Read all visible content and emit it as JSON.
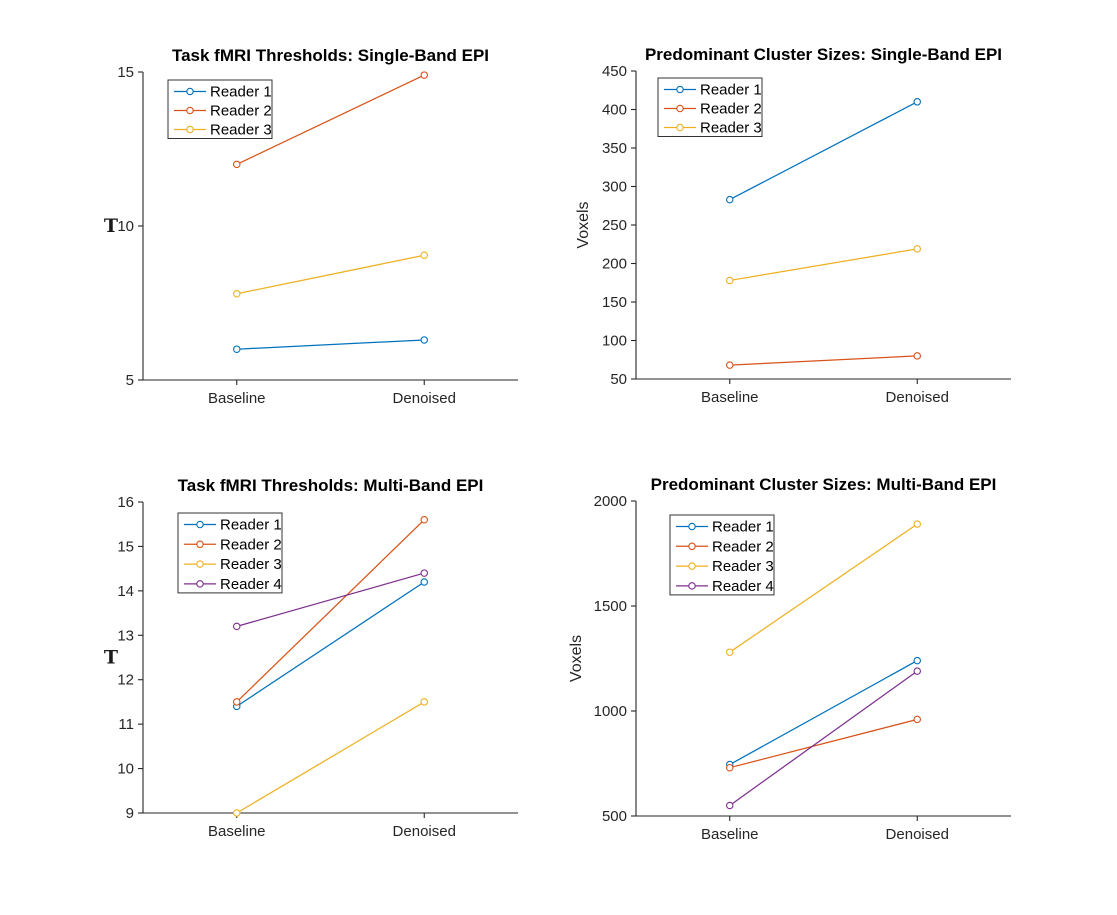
{
  "figure": {
    "background": "#ffffff",
    "axis_color": "#262626",
    "title_color": "#000000",
    "legend_border_color": "#333333"
  },
  "palette": {
    "reader1": "#0072BD",
    "reader2": "#D95319",
    "reader3": "#EDB120",
    "reader4": "#7E2F8E"
  },
  "chart_data": [
    {
      "id": "thresholds-single-band",
      "type": "line",
      "title": "Task fMRI Thresholds: Single-Band EPI",
      "xlabel": "",
      "ylabel": "T",
      "ylabel_style": "serif-bold",
      "categories": [
        "Baseline",
        "Denoised"
      ],
      "series": [
        {
          "name": "Reader 1",
          "color": "#0072BD",
          "values": [
            6.0,
            6.3
          ]
        },
        {
          "name": "Reader 2",
          "color": "#D95319",
          "values": [
            12.0,
            14.9
          ]
        },
        {
          "name": "Reader 3",
          "color": "#EDB120",
          "values": [
            7.8,
            9.05
          ]
        }
      ],
      "ylim": [
        5,
        15
      ],
      "yticks": [
        5,
        10,
        15
      ],
      "legend_position": "top-left",
      "grid": false,
      "marker": "open-circle"
    },
    {
      "id": "clusters-single-band",
      "type": "line",
      "title": "Predominant Cluster Sizes: Single-Band EPI",
      "xlabel": "",
      "ylabel": "Voxels",
      "ylabel_style": "rotated",
      "categories": [
        "Baseline",
        "Denoised"
      ],
      "series": [
        {
          "name": "Reader 1",
          "color": "#0072BD",
          "values": [
            283,
            410
          ]
        },
        {
          "name": "Reader 2",
          "color": "#D95319",
          "values": [
            68,
            80
          ]
        },
        {
          "name": "Reader 3",
          "color": "#EDB120",
          "values": [
            178,
            219
          ]
        }
      ],
      "ylim": [
        50,
        450
      ],
      "yticks": [
        50,
        100,
        150,
        200,
        250,
        300,
        350,
        400,
        450
      ],
      "legend_position": "top-left",
      "grid": false,
      "marker": "open-circle"
    },
    {
      "id": "thresholds-multi-band",
      "type": "line",
      "title": "Task fMRI Thresholds: Multi-Band EPI",
      "xlabel": "",
      "ylabel": "T",
      "ylabel_style": "serif-bold",
      "categories": [
        "Baseline",
        "Denoised"
      ],
      "series": [
        {
          "name": "Reader 1",
          "color": "#0072BD",
          "values": [
            11.4,
            14.2
          ]
        },
        {
          "name": "Reader 2",
          "color": "#D95319",
          "values": [
            11.5,
            15.6
          ]
        },
        {
          "name": "Reader 3",
          "color": "#EDB120",
          "values": [
            9.0,
            11.5
          ]
        },
        {
          "name": "Reader 4",
          "color": "#7E2F8E",
          "values": [
            13.2,
            14.4
          ]
        }
      ],
      "ylim": [
        9,
        16
      ],
      "yticks": [
        9,
        10,
        11,
        12,
        13,
        14,
        15,
        16
      ],
      "legend_position": "top-left",
      "grid": false,
      "marker": "open-circle"
    },
    {
      "id": "clusters-multi-band",
      "type": "line",
      "title": "Predominant Cluster Sizes: Multi-Band EPI",
      "xlabel": "",
      "ylabel": "Voxels",
      "ylabel_style": "rotated",
      "categories": [
        "Baseline",
        "Denoised"
      ],
      "series": [
        {
          "name": "Reader 1",
          "color": "#0072BD",
          "values": [
            745,
            1240
          ]
        },
        {
          "name": "Reader 2",
          "color": "#D95319",
          "values": [
            730,
            960
          ]
        },
        {
          "name": "Reader 3",
          "color": "#EDB120",
          "values": [
            1280,
            1890
          ]
        },
        {
          "name": "Reader 4",
          "color": "#7E2F8E",
          "values": [
            550,
            1190
          ]
        }
      ],
      "ylim": [
        500,
        2000
      ],
      "yticks": [
        500,
        1000,
        1500,
        2000
      ],
      "legend_position": "top-left",
      "grid": false,
      "marker": "open-circle"
    }
  ]
}
